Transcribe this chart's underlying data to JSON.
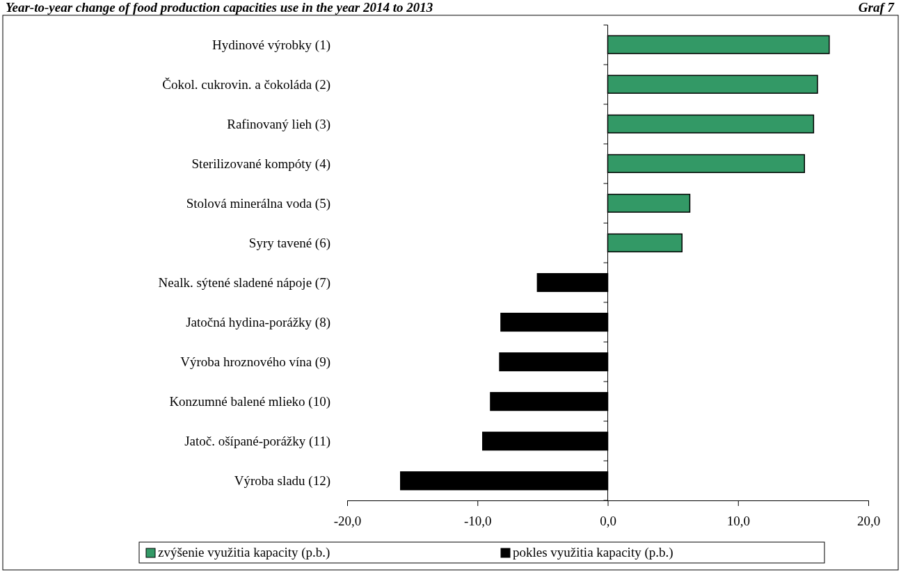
{
  "chart_data": {
    "type": "bar",
    "orientation": "horizontal",
    "title": "Year-to-year change of food production capacities use in the year 2014 to 2013",
    "annotations": [
      "Graf 7"
    ],
    "categories": [
      "Hydinové výrobky (1)",
      "Čokol. cukrovin. a čokoláda (2)",
      "Rafinovaný lieh (3)",
      "Sterilizované kompóty (4)",
      "Stolová minerálna voda (5)",
      "Syry tavené (6)",
      "Nealk. sýtené sladené nápoje (7)",
      "Jatočná hydina-porážky (8)",
      "Výroba hroznového vína (9)",
      "Konzumné balené mlieko (10)",
      "Jatoč. ošípané-porážky (11)",
      "Výroba sladu (12)"
    ],
    "series": [
      {
        "name": "zvýšenie využitia kapacity (p.b.)",
        "color": "#339966",
        "values": [
          17.0,
          16.1,
          15.8,
          15.1,
          6.3,
          5.7,
          null,
          null,
          null,
          null,
          null,
          null
        ]
      },
      {
        "name": "pokles využitia kapacity (p.b.)",
        "color": "#000000",
        "values": [
          null,
          null,
          null,
          null,
          null,
          null,
          -5.4,
          -8.2,
          -8.3,
          -9.0,
          -9.6,
          -15.9
        ]
      }
    ],
    "xlim": [
      -20,
      20
    ],
    "xticks": [
      {
        "value": -20,
        "label": "-20,0"
      },
      {
        "value": -10,
        "label": "-10,0"
      },
      {
        "value": 0,
        "label": "0,0"
      },
      {
        "value": 10,
        "label": "10,0"
      },
      {
        "value": 20,
        "label": "20,0"
      }
    ],
    "legend": "bottom"
  }
}
